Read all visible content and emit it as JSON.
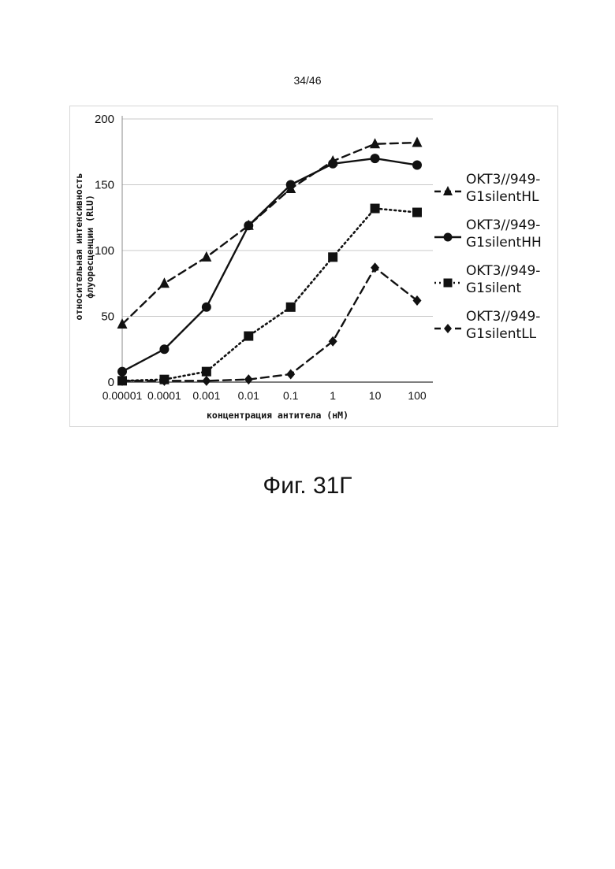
{
  "page": {
    "number": "34/46",
    "caption": "Фиг. 31Г"
  },
  "chart_data": {
    "type": "line",
    "categories": [
      "0.00001",
      "0.0001",
      "0.001",
      "0.01",
      "0.1",
      "1",
      "10",
      "100"
    ],
    "xlabel": "концентрация антитела (нМ)",
    "ylabel": [
      "относительная интенсивность",
      "флуоресценции (RLU)"
    ],
    "ylim": [
      0,
      200
    ],
    "yticks": [
      "0",
      "50",
      "100",
      "150",
      "200"
    ],
    "grid": true,
    "legend_position": "right",
    "series": [
      {
        "name": [
          "OKT3//949-",
          "G1silentHL"
        ],
        "marker": "triangle",
        "line_style": "dashed",
        "values": [
          44,
          75,
          95,
          119,
          147,
          168,
          181,
          182
        ]
      },
      {
        "name": [
          "OKT3//949-",
          "G1silentHH"
        ],
        "marker": "circle",
        "line_style": "solid",
        "values": [
          8,
          25,
          57,
          119,
          150,
          166,
          170,
          165
        ]
      },
      {
        "name": [
          "OKT3//949-",
          "G1silent"
        ],
        "marker": "square",
        "line_style": "dotted",
        "values": [
          1,
          2,
          8,
          35,
          57,
          95,
          132,
          129
        ]
      },
      {
        "name": [
          "OKT3//949-",
          "G1silentLL"
        ],
        "marker": "diamond",
        "line_style": "dashed",
        "values": [
          1,
          1,
          1,
          2,
          6,
          31,
          87,
          62
        ]
      }
    ],
    "colors": {
      "series": "#111111",
      "grid": "#c8c8c8"
    }
  }
}
